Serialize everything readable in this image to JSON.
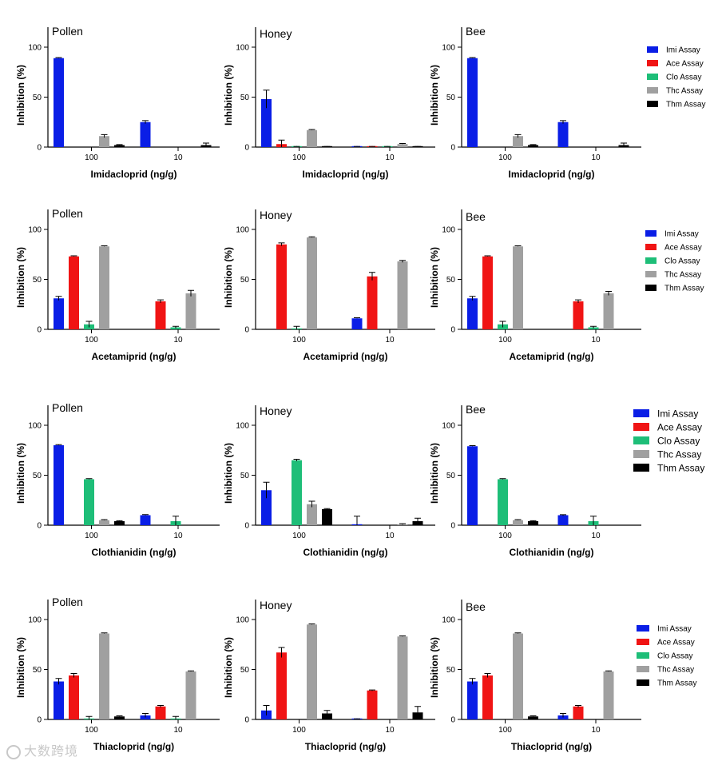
{
  "figure": {
    "ylabel": "Inhibition (%)",
    "yticks": [
      0,
      50,
      100
    ],
    "ylim": [
      0,
      120
    ]
  },
  "series_names": [
    "Imi Assay",
    "Ace Assay",
    "Clo Assay",
    "Thc Assay",
    "Thm Assay"
  ],
  "colors": {
    "Imi Assay": "#0a1ee6",
    "Ace Assay": "#f01414",
    "Clo Assay": "#1ebe78",
    "Thc Assay": "#a0a0a0",
    "Thm Assay": "#000000"
  },
  "watermark": {
    "text": "大数跨境"
  },
  "chart_data": [
    {
      "type": "bar",
      "title": "Pollen",
      "xlabel": "Imidacloprid (ng/g)",
      "ylabel": "Inhibition (%)",
      "categories": [
        "100",
        "10"
      ],
      "ylim": [
        0,
        120
      ],
      "series": [
        {
          "name": "Imi Assay",
          "values": [
            89,
            25
          ],
          "errors": [
            0,
            1.5
          ]
        },
        {
          "name": "Ace Assay",
          "values": [
            null,
            null
          ],
          "errors": [
            0,
            0
          ]
        },
        {
          "name": "Clo Assay",
          "values": [
            null,
            null
          ],
          "errors": [
            0,
            0
          ]
        },
        {
          "name": "Thc Assay",
          "values": [
            11,
            null
          ],
          "errors": [
            1.5,
            0
          ]
        },
        {
          "name": "Thm Assay",
          "values": [
            2,
            2
          ],
          "errors": [
            0.5,
            2
          ]
        }
      ]
    },
    {
      "type": "bar",
      "title": "Honey",
      "xlabel": "Imidacloprid (ng/g)",
      "ylabel": "Inhibition (%)",
      "categories": [
        "100",
        "10"
      ],
      "ylim": [
        0,
        120
      ],
      "series": [
        {
          "name": "Imi Assay",
          "values": [
            48,
            0
          ],
          "errors": [
            9,
            0
          ]
        },
        {
          "name": "Ace Assay",
          "values": [
            3,
            0
          ],
          "errors": [
            4,
            0
          ]
        },
        {
          "name": "Clo Assay",
          "values": [
            0,
            0
          ],
          "errors": [
            0,
            0
          ]
        },
        {
          "name": "Thc Assay",
          "values": [
            17,
            3
          ],
          "errors": [
            0,
            0
          ]
        },
        {
          "name": "Thm Assay",
          "values": [
            0,
            0
          ],
          "errors": [
            0,
            0
          ]
        }
      ]
    },
    {
      "type": "bar",
      "title": "Bee",
      "xlabel": "Imidacloprid (ng/g)",
      "ylabel": "Inhibition (%)",
      "categories": [
        "100",
        "10"
      ],
      "ylim": [
        0,
        120
      ],
      "series": [
        {
          "name": "Imi Assay",
          "values": [
            89,
            25
          ],
          "errors": [
            0,
            1.5
          ]
        },
        {
          "name": "Ace Assay",
          "values": [
            null,
            null
          ],
          "errors": [
            0,
            0
          ]
        },
        {
          "name": "Clo Assay",
          "values": [
            null,
            null
          ],
          "errors": [
            0,
            0
          ]
        },
        {
          "name": "Thc Assay",
          "values": [
            11,
            null
          ],
          "errors": [
            1.5,
            0
          ]
        },
        {
          "name": "Thm Assay",
          "values": [
            2,
            2
          ],
          "errors": [
            0.5,
            2
          ]
        }
      ]
    },
    {
      "type": "bar",
      "title": "Pollen",
      "xlabel": "Acetamiprid (ng/g)",
      "ylabel": "Inhibition (%)",
      "categories": [
        "100",
        "10"
      ],
      "ylim": [
        0,
        120
      ],
      "series": [
        {
          "name": "Imi Assay",
          "values": [
            31,
            null
          ],
          "errors": [
            2,
            0
          ]
        },
        {
          "name": "Ace Assay",
          "values": [
            73,
            28
          ],
          "errors": [
            0,
            1.5
          ]
        },
        {
          "name": "Clo Assay",
          "values": [
            5,
            2
          ],
          "errors": [
            3,
            1
          ]
        },
        {
          "name": "Thc Assay",
          "values": [
            83,
            36
          ],
          "errors": [
            0,
            3
          ]
        },
        {
          "name": "Thm Assay",
          "values": [
            null,
            null
          ],
          "errors": [
            0,
            0
          ]
        }
      ]
    },
    {
      "type": "bar",
      "title": "Honey",
      "xlabel": "Acetamiprid (ng/g)",
      "ylabel": "Inhibition (%)",
      "categories": [
        "100",
        "10"
      ],
      "ylim": [
        0,
        120
      ],
      "series": [
        {
          "name": "Imi Assay",
          "values": [
            null,
            11
          ],
          "errors": [
            0,
            0
          ]
        },
        {
          "name": "Ace Assay",
          "values": [
            85,
            53
          ],
          "errors": [
            1.5,
            4
          ]
        },
        {
          "name": "Clo Assay",
          "values": [
            0,
            null
          ],
          "errors": [
            3,
            0
          ]
        },
        {
          "name": "Thc Assay",
          "values": [
            92,
            68
          ],
          "errors": [
            0,
            1
          ]
        },
        {
          "name": "Thm Assay",
          "values": [
            null,
            null
          ],
          "errors": [
            0,
            0
          ]
        }
      ]
    },
    {
      "type": "bar",
      "title": "Bee",
      "xlabel": "Acetamiprid (ng/g)",
      "ylabel": "Inhibition (%)",
      "categories": [
        "100",
        "10"
      ],
      "ylim": [
        0,
        120
      ],
      "series": [
        {
          "name": "Imi Assay",
          "values": [
            31,
            null
          ],
          "errors": [
            2,
            0
          ]
        },
        {
          "name": "Ace Assay",
          "values": [
            73,
            28
          ],
          "errors": [
            0,
            1.5
          ]
        },
        {
          "name": "Clo Assay",
          "values": [
            5,
            2
          ],
          "errors": [
            3,
            1
          ]
        },
        {
          "name": "Thc Assay",
          "values": [
            83,
            36
          ],
          "errors": [
            0,
            2
          ]
        },
        {
          "name": "Thm Assay",
          "values": [
            null,
            null
          ],
          "errors": [
            0,
            0
          ]
        }
      ]
    },
    {
      "type": "bar",
      "title": "Pollen",
      "xlabel": "Clothianidin (ng/g)",
      "ylabel": "Inhibition (%)",
      "categories": [
        "100",
        "10"
      ],
      "ylim": [
        0,
        120
      ],
      "series": [
        {
          "name": "Imi Assay",
          "values": [
            80,
            10
          ],
          "errors": [
            0,
            0
          ]
        },
        {
          "name": "Ace Assay",
          "values": [
            null,
            null
          ],
          "errors": [
            0,
            0
          ]
        },
        {
          "name": "Clo Assay",
          "values": [
            46,
            4
          ],
          "errors": [
            0,
            5
          ]
        },
        {
          "name": "Thc Assay",
          "values": [
            5,
            null
          ],
          "errors": [
            0,
            0
          ]
        },
        {
          "name": "Thm Assay",
          "values": [
            4,
            null
          ],
          "errors": [
            0.5,
            0
          ]
        }
      ]
    },
    {
      "type": "bar",
      "title": "Honey",
      "xlabel": "Clothianidin (ng/g)",
      "ylabel": "Inhibition (%)",
      "categories": [
        "100",
        "10"
      ],
      "ylim": [
        0,
        120
      ],
      "series": [
        {
          "name": "Imi Assay",
          "values": [
            35,
            0
          ],
          "errors": [
            8,
            9
          ]
        },
        {
          "name": "Ace Assay",
          "values": [
            null,
            null
          ],
          "errors": [
            0,
            0
          ]
        },
        {
          "name": "Clo Assay",
          "values": [
            65,
            null
          ],
          "errors": [
            1,
            0
          ]
        },
        {
          "name": "Thc Assay",
          "values": [
            21,
            1
          ],
          "errors": [
            3,
            0.5
          ]
        },
        {
          "name": "Thm Assay",
          "values": [
            16,
            4
          ],
          "errors": [
            0,
            3
          ]
        }
      ]
    },
    {
      "type": "bar",
      "title": "Bee",
      "xlabel": "Clothianidin (ng/g)",
      "ylabel": "Inhibition (%)",
      "categories": [
        "100",
        "10"
      ],
      "ylim": [
        0,
        120
      ],
      "series": [
        {
          "name": "Imi Assay",
          "values": [
            79,
            10
          ],
          "errors": [
            0,
            0.5
          ]
        },
        {
          "name": "Ace Assay",
          "values": [
            null,
            null
          ],
          "errors": [
            0,
            0
          ]
        },
        {
          "name": "Clo Assay",
          "values": [
            46,
            4
          ],
          "errors": [
            0,
            5
          ]
        },
        {
          "name": "Thc Assay",
          "values": [
            5,
            null
          ],
          "errors": [
            0,
            0
          ]
        },
        {
          "name": "Thm Assay",
          "values": [
            4,
            null
          ],
          "errors": [
            0.5,
            0
          ]
        }
      ]
    },
    {
      "type": "bar",
      "title": "Pollen",
      "xlabel": "Thiacloprid (ng/g)",
      "ylabel": "Inhibition (%)",
      "categories": [
        "100",
        "10"
      ],
      "ylim": [
        0,
        120
      ],
      "series": [
        {
          "name": "Imi Assay",
          "values": [
            38,
            4
          ],
          "errors": [
            3,
            2
          ]
        },
        {
          "name": "Ace Assay",
          "values": [
            44,
            13
          ],
          "errors": [
            2,
            1
          ]
        },
        {
          "name": "Clo Assay",
          "values": [
            0,
            0
          ],
          "errors": [
            3,
            3
          ]
        },
        {
          "name": "Thc Assay",
          "values": [
            86,
            48
          ],
          "errors": [
            0,
            0
          ]
        },
        {
          "name": "Thm Assay",
          "values": [
            3,
            null
          ],
          "errors": [
            0,
            0
          ]
        }
      ]
    },
    {
      "type": "bar",
      "title": "Honey",
      "xlabel": "Thiacloprid (ng/g)",
      "ylabel": "Inhibition (%)",
      "categories": [
        "100",
        "10"
      ],
      "ylim": [
        0,
        120
      ],
      "series": [
        {
          "name": "Imi Assay",
          "values": [
            9,
            0
          ],
          "errors": [
            5,
            0
          ]
        },
        {
          "name": "Ace Assay",
          "values": [
            67,
            29
          ],
          "errors": [
            5,
            0.5
          ]
        },
        {
          "name": "Clo Assay",
          "values": [
            null,
            null
          ],
          "errors": [
            0,
            0
          ]
        },
        {
          "name": "Thc Assay",
          "values": [
            95,
            83
          ],
          "errors": [
            0,
            0
          ]
        },
        {
          "name": "Thm Assay",
          "values": [
            6,
            7
          ],
          "errors": [
            3,
            6
          ]
        }
      ]
    },
    {
      "type": "bar",
      "title": "Bee",
      "xlabel": "Thiacloprid (ng/g)",
      "ylabel": "Inhibition (%)",
      "categories": [
        "100",
        "10"
      ],
      "ylim": [
        0,
        120
      ],
      "series": [
        {
          "name": "Imi Assay",
          "values": [
            38,
            4
          ],
          "errors": [
            3,
            2
          ]
        },
        {
          "name": "Ace Assay",
          "values": [
            44,
            13
          ],
          "errors": [
            2,
            1
          ]
        },
        {
          "name": "Clo Assay",
          "values": [
            null,
            null
          ],
          "errors": [
            0,
            0
          ]
        },
        {
          "name": "Thc Assay",
          "values": [
            86,
            48
          ],
          "errors": [
            0,
            0
          ]
        },
        {
          "name": "Thm Assay",
          "values": [
            3,
            null
          ],
          "errors": [
            0,
            0
          ]
        }
      ]
    }
  ]
}
